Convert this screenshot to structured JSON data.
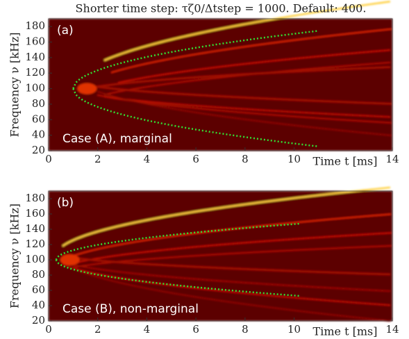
{
  "chart_data": [
    {
      "type": "spectrogram",
      "title": "Shorter time step: τζ0/Δtstep = 1000. Default: 400.",
      "panel_label": "(a)",
      "annotation": "Case (A), marginal",
      "x_label": "Time t [ms]",
      "y_label": "Frequency ν [kHz]",
      "xlim": [
        0,
        14
      ],
      "xticks": [
        0,
        2,
        4,
        6,
        8,
        10,
        14
      ],
      "ylim": [
        20,
        190
      ],
      "yticks": [
        20,
        40,
        60,
        80,
        100,
        120,
        140,
        160,
        180
      ]
    },
    {
      "type": "spectrogram",
      "panel_label": "(b)",
      "annotation": "Case (B), non-marginal",
      "x_label": "Time t [ms]",
      "y_label": "Frequency ν [kHz]",
      "xlim": [
        0,
        14
      ],
      "xticks": [
        0,
        2,
        4,
        6,
        8,
        10,
        14
      ],
      "ylim": [
        20,
        190
      ],
      "yticks": [
        20,
        40,
        60,
        80,
        100,
        120,
        140,
        160,
        180
      ]
    }
  ]
}
